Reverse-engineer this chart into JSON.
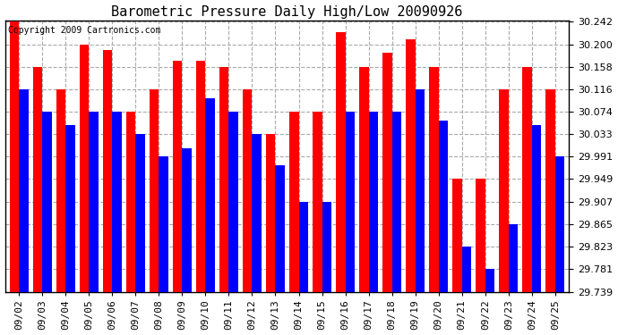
{
  "title": "Barometric Pressure Daily High/Low 20090926",
  "copyright": "Copyright 2009 Cartronics.com",
  "dates": [
    "09/02",
    "09/03",
    "09/04",
    "09/05",
    "09/06",
    "09/07",
    "09/08",
    "09/09",
    "09/10",
    "09/11",
    "09/12",
    "09/13",
    "09/14",
    "09/15",
    "09/16",
    "09/17",
    "09/18",
    "09/19",
    "09/20",
    "09/21",
    "09/22",
    "09/23",
    "09/24",
    "09/25"
  ],
  "highs": [
    30.242,
    30.158,
    30.116,
    30.2,
    30.19,
    30.074,
    30.116,
    30.17,
    30.17,
    30.158,
    30.116,
    30.033,
    30.074,
    30.074,
    30.222,
    30.158,
    30.185,
    30.21,
    30.158,
    29.949,
    29.949,
    30.116,
    30.158,
    30.116
  ],
  "lows": [
    30.116,
    30.074,
    30.05,
    30.074,
    30.074,
    30.033,
    29.991,
    30.007,
    30.1,
    30.074,
    30.033,
    29.975,
    29.907,
    29.907,
    30.074,
    30.074,
    30.074,
    30.116,
    30.058,
    29.823,
    29.781,
    29.865,
    30.05,
    29.991
  ],
  "high_color": "#ff0000",
  "low_color": "#0000ff",
  "bg_color": "#ffffff",
  "plot_bg_color": "#ffffff",
  "grid_color": "#aaaaaa",
  "ymin": 29.739,
  "ymax": 30.242,
  "yticks": [
    29.739,
    29.781,
    29.823,
    29.865,
    29.907,
    29.949,
    29.991,
    30.033,
    30.074,
    30.116,
    30.158,
    30.2,
    30.242
  ]
}
